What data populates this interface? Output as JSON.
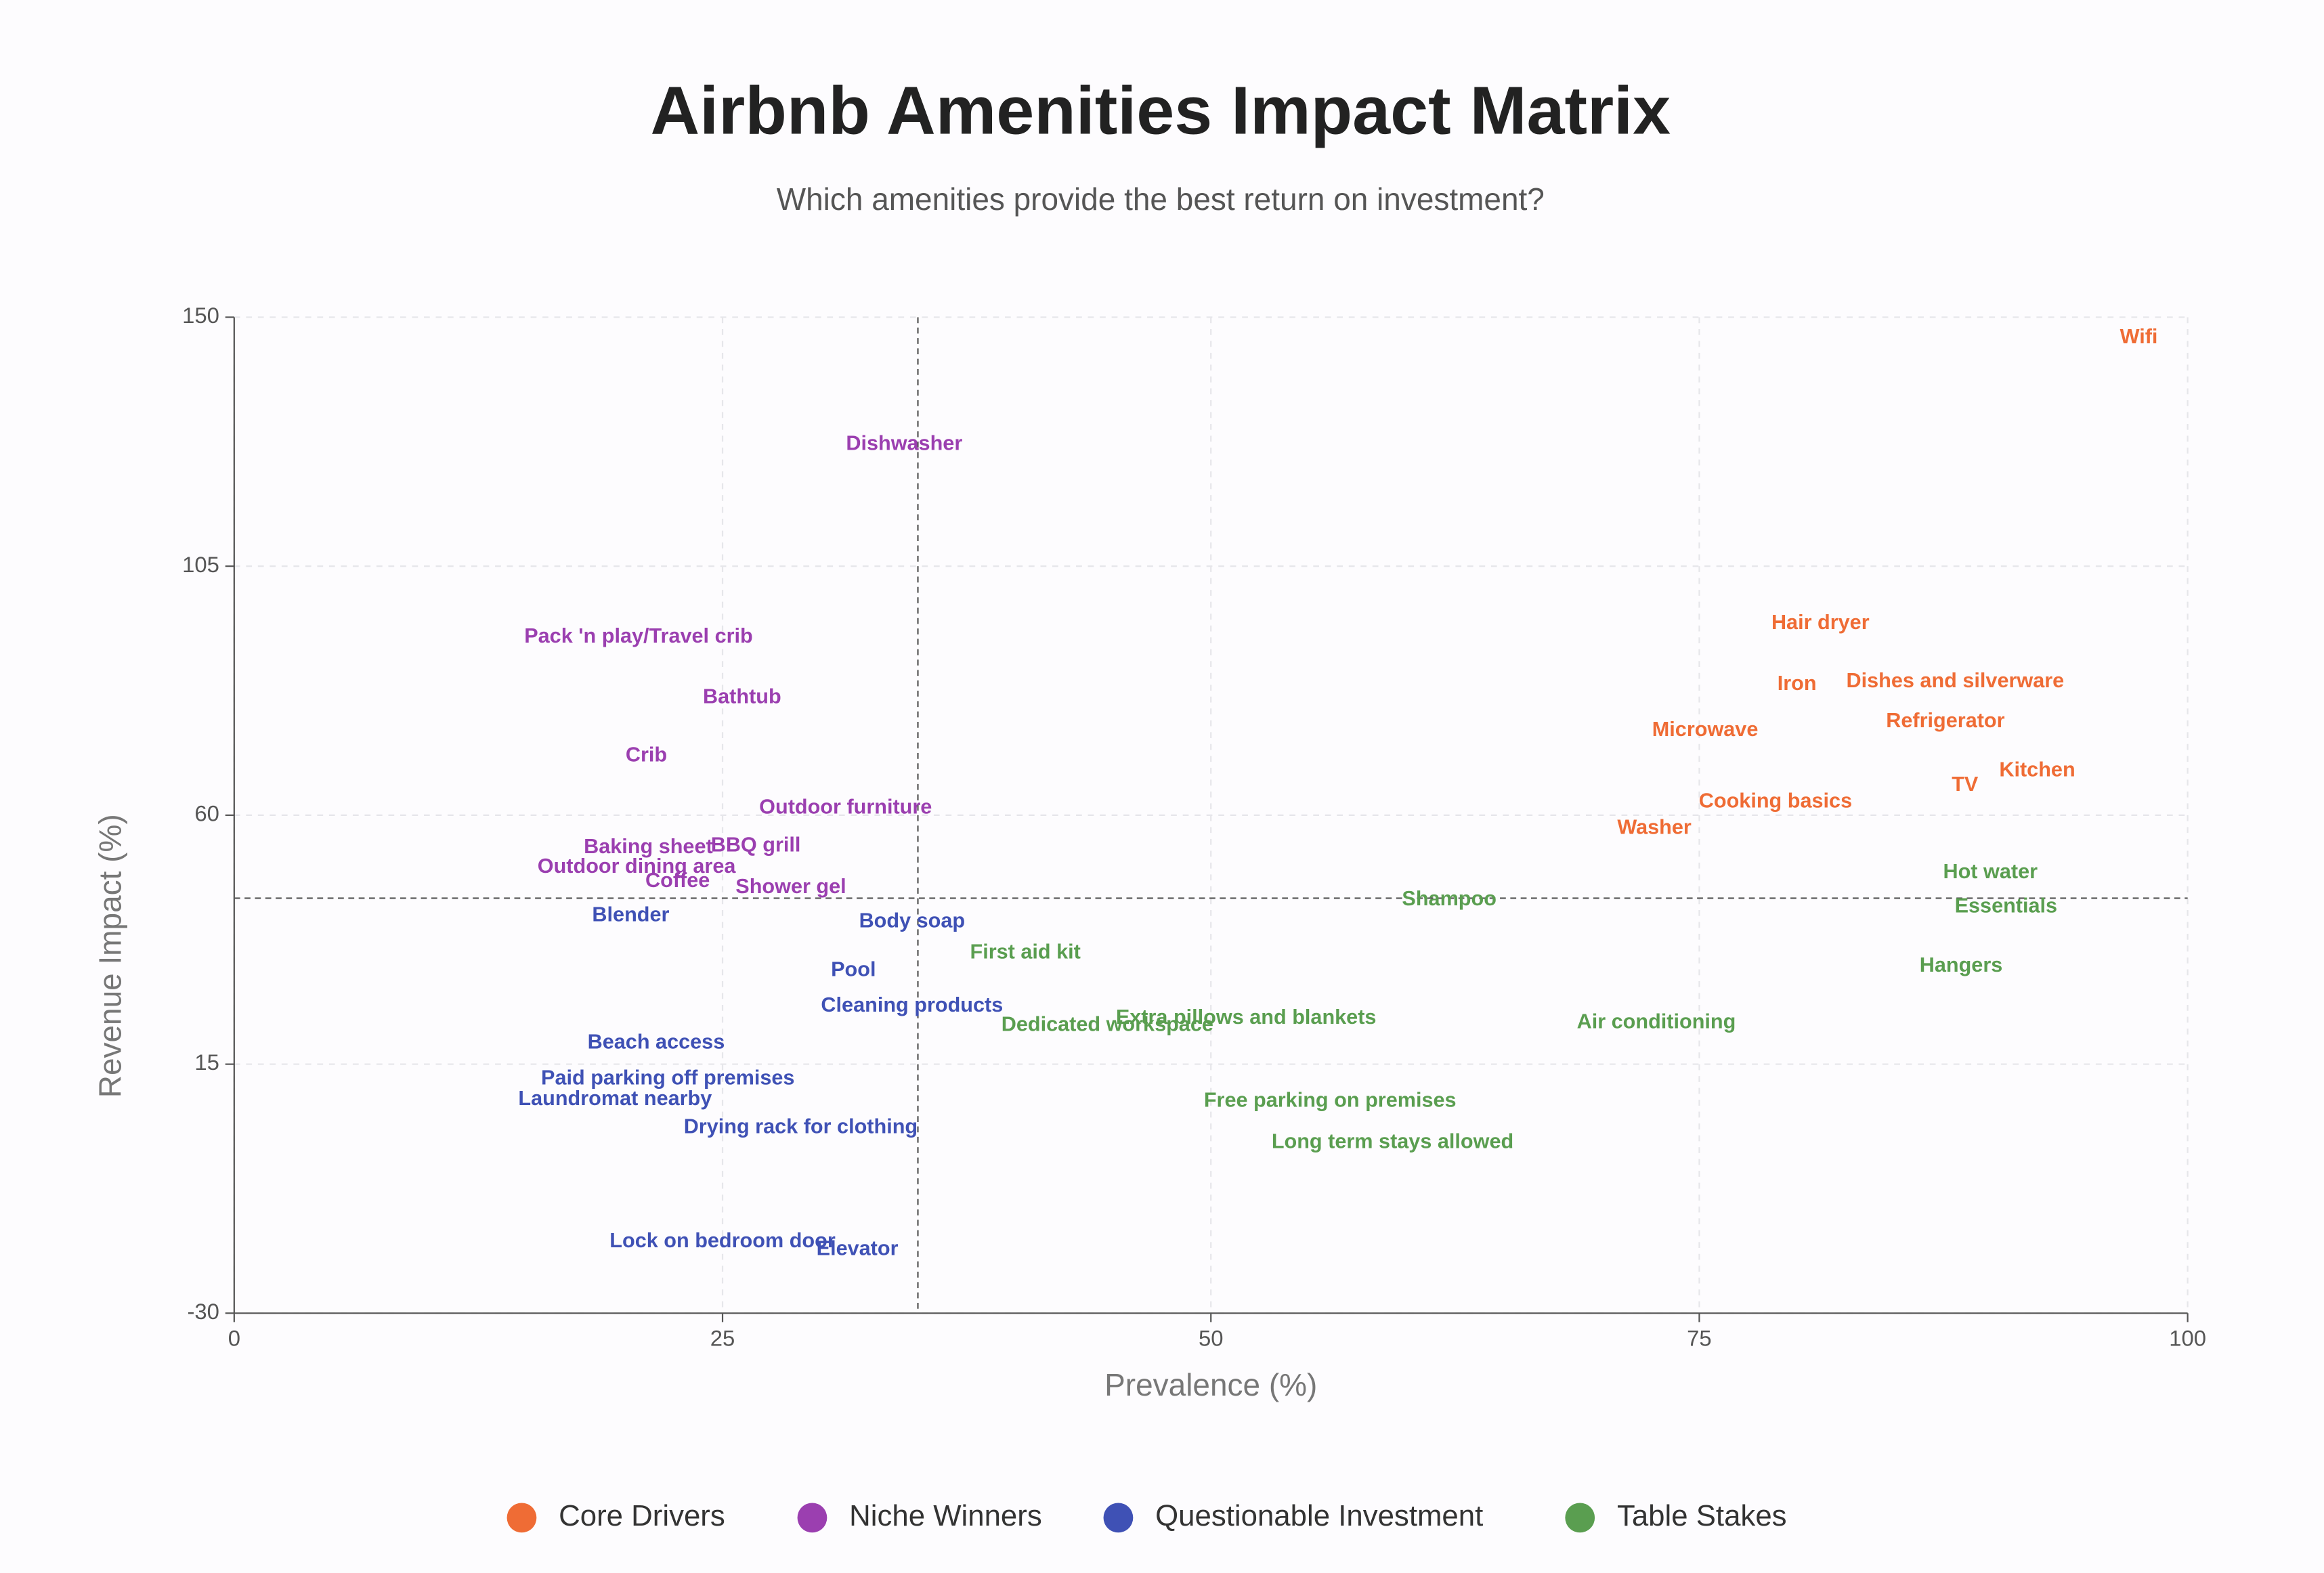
{
  "chart_data": {
    "type": "scatter",
    "title": "Airbnb Amenities Impact Matrix",
    "subtitle": "Which amenities provide the best return on investment?",
    "x_label": "Prevalence (%)",
    "y_label": "Revenue Impact (%)",
    "xlim": [
      0,
      100
    ],
    "xticks": [
      0,
      25,
      50,
      75,
      100
    ],
    "ylim": [
      -30,
      150
    ],
    "yticks": [
      -30,
      15,
      60,
      105,
      150
    ],
    "grid": true,
    "x_reference_line": 35,
    "y_reference_line": 45,
    "legend": "bottom",
    "series": [
      {
        "name": "Core Drivers",
        "color": "#ef6c35",
        "labels": [
          "Wifi",
          "Hair dryer",
          "Iron",
          "Dishes and silverware",
          "Refrigerator",
          "Microwave",
          "Kitchen",
          "TV",
          "Cooking basics",
          "Washer"
        ],
        "x": [
          97.5,
          81.2,
          80.0,
          88.1,
          87.6,
          75.3,
          92.3,
          88.6,
          78.9,
          72.7
        ],
        "values": [
          146.3,
          94.6,
          83.6,
          84.1,
          76.9,
          75.3,
          68.0,
          65.4,
          62.4,
          57.6
        ]
      },
      {
        "name": "Niche Winners",
        "color": "#9b3fb0",
        "labels": [
          "Dishwasher",
          "Pack 'n play/Travel crib",
          "Bathtub",
          "Crib",
          "Outdoor furniture",
          "Baking sheet",
          "BBQ grill",
          "Outdoor dining area",
          "Coffee",
          "Shower gel"
        ],
        "x": [
          34.3,
          20.7,
          26.0,
          21.1,
          31.3,
          21.2,
          26.7,
          20.6,
          22.7,
          28.5
        ],
        "values": [
          127.0,
          92.2,
          81.2,
          70.7,
          61.3,
          54.1,
          54.4,
          50.6,
          48.0,
          46.9
        ]
      },
      {
        "name": "Questionable Investment",
        "color": "#3f51b5",
        "labels": [
          "Body soap",
          "Blender",
          "Pool",
          "Cleaning products",
          "Beach access",
          "Paid parking off premises",
          "Laundromat nearby",
          "Drying rack for clothing",
          "Lock on bedroom door",
          "Elevator"
        ],
        "x": [
          34.7,
          20.3,
          31.7,
          34.7,
          21.6,
          22.2,
          19.5,
          29.0,
          25.0,
          31.9
        ],
        "values": [
          40.7,
          41.8,
          31.9,
          25.5,
          18.8,
          12.3,
          8.6,
          3.5,
          -17.1,
          -18.5
        ]
      },
      {
        "name": "Table Stakes",
        "color": "#5a9e50",
        "labels": [
          "Shampoo",
          "Hot water",
          "Essentials",
          "First aid kit",
          "Hangers",
          "Dedicated workspace",
          "Extra pillows and blankets",
          "Air conditioning",
          "Free parking on premises",
          "Long term stays allowed"
        ],
        "x": [
          62.2,
          89.9,
          90.7,
          40.5,
          88.4,
          44.7,
          51.8,
          72.8,
          56.1,
          59.3
        ],
        "values": [
          44.7,
          49.6,
          43.4,
          35.1,
          32.7,
          22.0,
          23.3,
          22.5,
          8.3,
          0.8
        ]
      }
    ]
  }
}
